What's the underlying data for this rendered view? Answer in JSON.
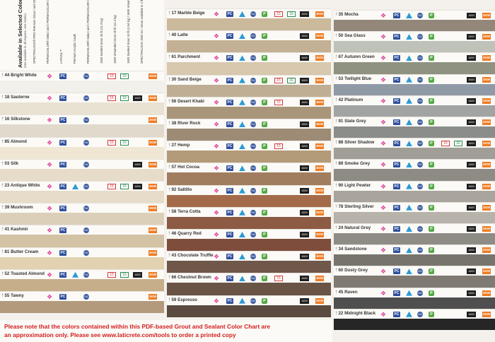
{
  "legend": {
    "title": "Available in Selected Colors:",
    "subtitle": "(Not available in all regions, see matrix)",
    "note": "LATICRETE® PRO Premium Grout and SPECTRALOCK PRO Grout are available in the color (1) above. Not available in all regions.",
    "items": [
      {
        "icon": "spectralock",
        "text": "SPECTRALOCK® PRO Premium Grout / and SPECTRALOCK PRO Grout"
      },
      {
        "icon": "permacolor",
        "text": "PERMACOLOR® Select and / PERMACOLOR Grout"
      },
      {
        "icon": "latasil",
        "text": "LATASIL™"
      },
      {
        "icon": "latacaulk",
        "text": "Premium Acrylic Caulk"
      },
      {
        "icon": "permacolor-select",
        "text": "PERMACOLOR® Select and / PERMACOLOR Grout"
      },
      {
        "icon": "sanded-15",
        "text": "1500 Sanded Grout 25 lb (11.3 kg)"
      },
      {
        "icon": "unsanded-16",
        "text": "1600 Unsanded Grout 25 lb (11.3 kg)"
      },
      {
        "icon": "1600",
        "text": "1500 Sanded Grout 10 lb (4.54 kg) / 1600 Unsanded Grout 8 lb (3.63 kg)"
      },
      {
        "icon": "2k",
        "text": "SPECTRALOCK 2000 IG / Grout available in 4 lb / #44 Bright White"
      }
    ]
  },
  "icon_labels": {
    "pc": "PC",
    "fc": "FAC",
    "p": "P",
    "sanded": "15",
    "unsanded": "16",
    "sm": "1600",
    "twok": "2K00"
  },
  "columns": [
    {
      "colors": [
        {
          "code": "44",
          "name": "Bright White",
          "color": "#f2f0ea",
          "icons": [
            "sp",
            "pc",
            "fc",
            "15",
            "16",
            "2k"
          ]
        },
        {
          "code": "18",
          "name": "Sauterne",
          "color": "#e9e2d3",
          "icons": [
            "sp",
            "pc",
            "fc",
            "15",
            "16",
            "1600",
            "2k"
          ]
        },
        {
          "code": "16",
          "name": "Silkstone",
          "color": "#e1d9cc",
          "icons": [
            "sp",
            "pc",
            "fc",
            "2k"
          ]
        },
        {
          "code": "85",
          "name": "Almond",
          "color": "#efe7d3",
          "icons": [
            "sp",
            "pc",
            "fc",
            "15",
            "16",
            "2k"
          ]
        },
        {
          "code": "03",
          "name": "Silk",
          "color": "#e6dcc9",
          "icons": [
            "sp",
            "pc",
            "fc",
            "1600",
            "2k"
          ]
        },
        {
          "code": "23",
          "name": "Antique White",
          "color": "#e6dcc9",
          "icons": [
            "sp",
            "pc",
            "tri",
            "fc",
            "15",
            "16",
            "1600",
            "2k"
          ]
        },
        {
          "code": "39",
          "name": "Mushroom",
          "color": "#dccfba",
          "icons": [
            "sp",
            "pc",
            "fc",
            "2k"
          ]
        },
        {
          "code": "41",
          "name": "Kashmir",
          "color": "#d3c2a4",
          "icons": [
            "sp",
            "pc",
            "fc",
            "2k"
          ]
        },
        {
          "code": "81",
          "name": "Butter Cream",
          "color": "#e2d2b1",
          "icons": [
            "sp",
            "pc",
            "fc",
            "2k"
          ]
        },
        {
          "code": "52",
          "name": "Toasted Almond",
          "color": "#c7ae8b",
          "icons": [
            "sp",
            "pc",
            "tri",
            "fc",
            "15",
            "16",
            "1600",
            "2k"
          ]
        },
        {
          "code": "55",
          "name": "Tawny",
          "color": "#b39a7d",
          "icons": [
            "sp",
            "pc",
            "fc",
            "2k"
          ]
        }
      ]
    },
    {
      "colors": [
        {
          "code": "17",
          "name": "Marble Beige",
          "color": "#cbb99c",
          "icons": [
            "sp",
            "pc",
            "tri",
            "fc",
            "p",
            "15",
            "16",
            "1600",
            "2k"
          ]
        },
        {
          "code": "40",
          "name": "Latte",
          "color": "#c4b094",
          "icons": [
            "sp",
            "pc",
            "tri",
            "fc",
            "p",
            "1600",
            "2k"
          ]
        },
        {
          "code": "61",
          "name": "Parchment",
          "color": "#d7c8ae",
          "icons": [
            "sp",
            "pc",
            "tri",
            "fc",
            "p",
            "1600",
            "2k"
          ]
        },
        {
          "code": "30",
          "name": "Sand Beige",
          "color": "#bfae94",
          "icons": [
            "sp",
            "pc",
            "tri",
            "fc",
            "p",
            "15",
            "16",
            "1600",
            "2k"
          ]
        },
        {
          "code": "56",
          "name": "Desert Khaki",
          "color": "#a9967a",
          "icons": [
            "sp",
            "pc",
            "tri",
            "fc",
            "p",
            "15",
            "1600",
            "2k"
          ]
        },
        {
          "code": "38",
          "name": "River Rock",
          "color": "#9d8b75",
          "icons": [
            "sp",
            "pc",
            "tri",
            "fc",
            "p",
            "1600",
            "2k"
          ]
        },
        {
          "code": "27",
          "name": "Hemp",
          "color": "#b39a78",
          "icons": [
            "sp",
            "pc",
            "tri",
            "fc",
            "p",
            "15",
            "1600",
            "2k"
          ]
        },
        {
          "code": "57",
          "name": "Hot Cocoa",
          "color": "#a17d5f",
          "icons": [
            "sp",
            "pc",
            "tri",
            "fc",
            "p",
            "1600",
            "2k"
          ]
        },
        {
          "code": "92",
          "name": "Saltillo",
          "color": "#a46b4b",
          "icons": [
            "sp",
            "pc",
            "tri",
            "fc",
            "p",
            "1600",
            "2k"
          ]
        },
        {
          "code": "58",
          "name": "Terra Cotta",
          "color": "#8d5a43",
          "icons": [
            "sp",
            "pc",
            "tri",
            "fc",
            "p",
            "1600",
            "2k"
          ]
        },
        {
          "code": "46",
          "name": "Quarry Red",
          "color": "#7e4d3c",
          "icons": [
            "sp",
            "pc",
            "tri",
            "fc",
            "p",
            "1600",
            "2k"
          ]
        },
        {
          "code": "43",
          "name": "Chocolate Truffle",
          "color": "#6f5749",
          "icons": [
            "sp",
            "pc",
            "tri",
            "fc",
            "p",
            "1600",
            "2k"
          ]
        },
        {
          "code": "66",
          "name": "Chestnut Brown",
          "color": "#6a5446",
          "icons": [
            "sp",
            "pc",
            "tri",
            "fc",
            "p",
            "15",
            "1600",
            "2k"
          ]
        },
        {
          "code": "59",
          "name": "Espresso",
          "color": "#5a4a3f",
          "icons": [
            "sp",
            "pc",
            "tri",
            "fc",
            "p",
            "1600",
            "2k"
          ]
        }
      ]
    },
    {
      "colors": [
        {
          "code": "35",
          "name": "Mocha",
          "color": "#928778",
          "icons": [
            "sp",
            "pc",
            "tri",
            "fc",
            "p",
            "1600",
            "2k"
          ]
        },
        {
          "code": "50",
          "name": "Sea Glass",
          "color": "#bfc2b8",
          "icons": [
            "sp",
            "pc",
            "tri",
            "fc",
            "p",
            "1600",
            "2k"
          ]
        },
        {
          "code": "67",
          "name": "Autumn Green",
          "color": "#8f9281",
          "icons": [
            "sp",
            "pc",
            "tri",
            "fc",
            "p",
            "1600",
            "2k"
          ]
        },
        {
          "code": "53",
          "name": "Twilight Blue",
          "color": "#8f9aa6",
          "icons": [
            "sp",
            "pc",
            "tri",
            "fc",
            "p",
            "1600",
            "2k"
          ]
        },
        {
          "code": "42",
          "name": "Platinum",
          "color": "#a2a4a3",
          "icons": [
            "sp",
            "pc",
            "tri",
            "fc",
            "p",
            "1600",
            "2k"
          ]
        },
        {
          "code": "91",
          "name": "Slate Grey",
          "color": "#8b8d8b",
          "icons": [
            "sp",
            "pc",
            "tri",
            "fc",
            "p",
            "1600",
            "2k"
          ]
        },
        {
          "code": "88",
          "name": "Silver Shadow",
          "color": "#a19e98",
          "icons": [
            "sp",
            "pc",
            "tri",
            "fc",
            "p",
            "15",
            "16",
            "1600",
            "2k"
          ]
        },
        {
          "code": "89",
          "name": "Smoke Grey",
          "color": "#8e8b85",
          "icons": [
            "sp",
            "pc",
            "tri",
            "fc",
            "p",
            "1600",
            "2k"
          ]
        },
        {
          "code": "90",
          "name": "Light Pewter",
          "color": "#a9a59c",
          "icons": [
            "sp",
            "pc",
            "tri",
            "fc",
            "p",
            "1600",
            "2k"
          ]
        },
        {
          "code": "78",
          "name": "Sterling Silver",
          "color": "#b7b3aa",
          "icons": [
            "sp",
            "pc",
            "tri",
            "fc",
            "p",
            "1600",
            "2k"
          ]
        },
        {
          "code": "24",
          "name": "Natural Grey",
          "color": "#8f8c86",
          "icons": [
            "sp",
            "pc",
            "tri",
            "fc",
            "p",
            "1600",
            "2k"
          ]
        },
        {
          "code": "34",
          "name": "Sandstone",
          "color": "#77746e",
          "icons": [
            "sp",
            "pc",
            "tri",
            "fc",
            "p",
            "1600",
            "2k"
          ]
        },
        {
          "code": "60",
          "name": "Dusty Grey",
          "color": "#7f7a72",
          "icons": [
            "sp",
            "pc",
            "tri",
            "fc",
            "p",
            "1600",
            "2k"
          ]
        },
        {
          "code": "45",
          "name": "Raven",
          "color": "#4f4f4f",
          "icons": [
            "sp",
            "pc",
            "tri",
            "fc",
            "p",
            "1600",
            "2k"
          ]
        },
        {
          "code": "22",
          "name": "Midnight Black",
          "color": "#262626",
          "icons": [
            "sp",
            "pc",
            "tri",
            "fc",
            "p",
            "1600",
            "2k"
          ]
        }
      ]
    }
  ],
  "notice": {
    "line1": "Please note that the colors contained within this PDF-based Grout and Sealant Color Chart are",
    "line2": "an approximation only. Please see www.laticrete.com/tools to order a printed copy"
  },
  "colors": {
    "notice_text": "#d32020"
  }
}
